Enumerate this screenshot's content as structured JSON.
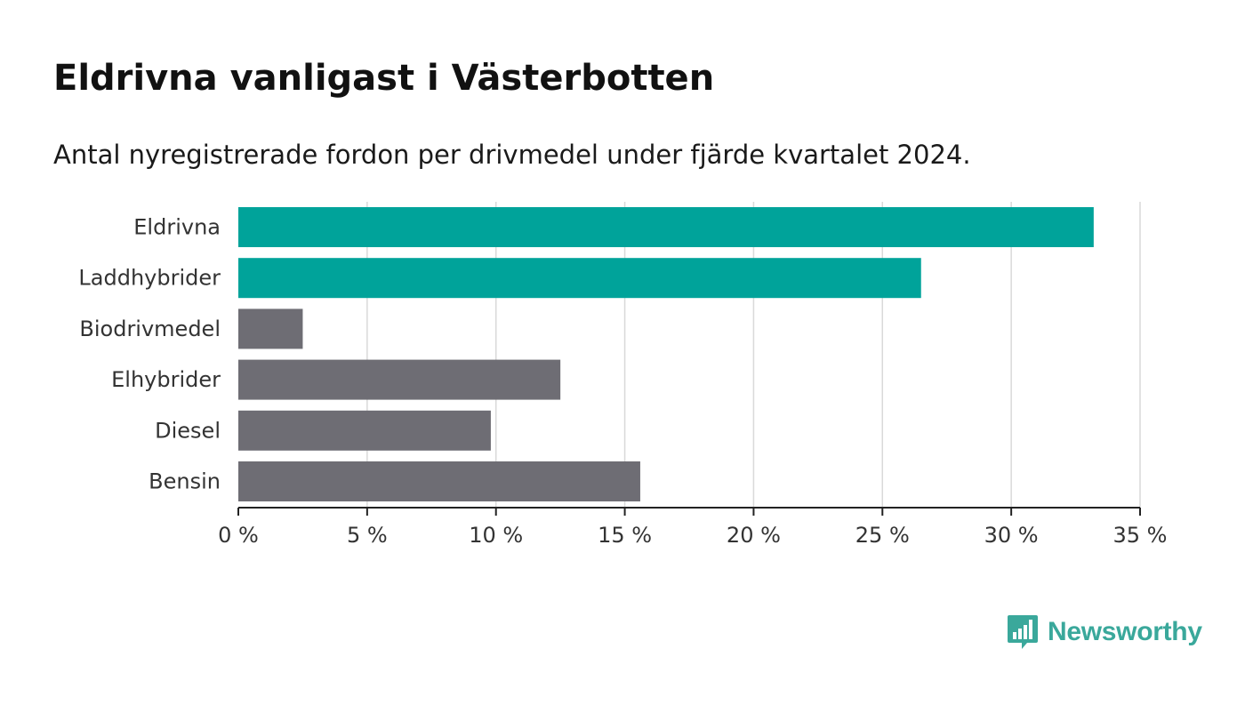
{
  "chart_data": {
    "type": "bar",
    "orientation": "horizontal",
    "title": "Eldrivna vanligast i Västerbotten",
    "subtitle": "Antal nyregistrerade fordon per drivmedel under fjärde kvartalet 2024.",
    "categories": [
      "Eldrivna",
      "Laddhybrider",
      "Biodrivmedel",
      "Elhybrider",
      "Diesel",
      "Bensin"
    ],
    "values": [
      33.2,
      26.5,
      2.5,
      12.5,
      9.8,
      15.6
    ],
    "bar_colors": [
      "#00a39a",
      "#00a39a",
      "#6e6d74",
      "#6e6d74",
      "#6e6d74",
      "#6e6d74"
    ],
    "xlim": [
      0,
      35
    ],
    "x_ticks": [
      0,
      5,
      10,
      15,
      20,
      25,
      30,
      35
    ],
    "x_tick_labels": [
      "0 %",
      "5 %",
      "10 %",
      "15 %",
      "20 %",
      "25 %",
      "30 %",
      "35 %"
    ],
    "xlabel": "",
    "ylabel": "",
    "grid": "vertical"
  },
  "branding": {
    "logo_text": "Newsworthy",
    "logo_color": "#3aa89b"
  }
}
